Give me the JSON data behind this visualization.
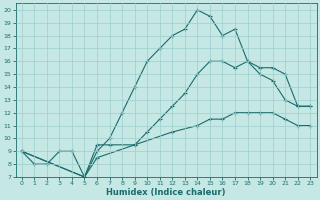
{
  "xlabel": "Humidex (Indice chaleur)",
  "xlim": [
    -0.5,
    23.5
  ],
  "ylim": [
    7,
    20.5
  ],
  "yticks": [
    7,
    8,
    9,
    10,
    11,
    12,
    13,
    14,
    15,
    16,
    17,
    18,
    19,
    20
  ],
  "xticks": [
    0,
    1,
    2,
    3,
    4,
    5,
    6,
    7,
    8,
    9,
    10,
    11,
    12,
    13,
    14,
    15,
    16,
    17,
    18,
    19,
    20,
    21,
    22,
    23
  ],
  "bg_color": "#c5e8e5",
  "line_color": "#1a6b6b",
  "grid_color": "#9ecece",
  "line1_x": [
    0,
    1,
    2,
    3,
    4,
    5,
    6,
    7,
    8,
    9,
    10,
    11,
    12,
    13,
    14,
    15,
    16,
    17,
    18,
    19,
    20,
    21,
    22,
    23
  ],
  "line1_y": [
    9.0,
    8.0,
    8.0,
    9.0,
    9.0,
    7.0,
    9.0,
    10.0,
    12.0,
    14.0,
    16.0,
    17.0,
    18.0,
    18.5,
    20.0,
    19.5,
    18.0,
    18.5,
    16.0,
    15.0,
    14.5,
    13.0,
    12.5,
    12.5
  ],
  "line2_x": [
    0,
    5,
    6,
    7,
    9,
    10,
    11,
    12,
    13,
    14,
    15,
    16,
    17,
    18,
    19,
    20,
    21,
    22,
    23
  ],
  "line2_y": [
    9.0,
    7.0,
    9.5,
    9.5,
    9.5,
    10.5,
    11.5,
    12.5,
    13.5,
    15.0,
    16.0,
    16.0,
    15.5,
    16.0,
    15.5,
    15.5,
    15.0,
    12.5,
    12.5
  ],
  "line3_x": [
    0,
    5,
    6,
    9,
    12,
    14,
    15,
    16,
    17,
    18,
    19,
    20,
    21,
    22,
    23
  ],
  "line3_y": [
    9.0,
    7.0,
    8.5,
    9.5,
    10.5,
    11.0,
    11.5,
    11.5,
    12.0,
    12.0,
    12.0,
    12.0,
    11.5,
    11.0,
    11.0
  ]
}
